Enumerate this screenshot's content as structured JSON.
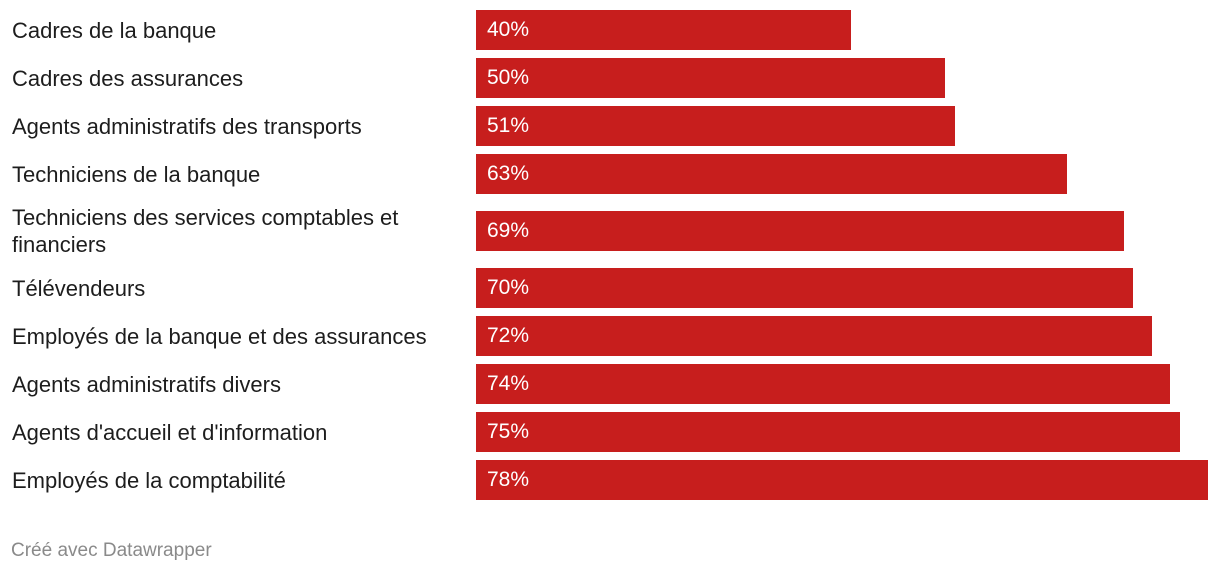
{
  "chart_data": {
    "type": "bar",
    "orientation": "horizontal",
    "categories": [
      "Cadres de la banque",
      "Cadres des assurances",
      "Agents administratifs des transports",
      "Techniciens de la banque",
      "Techniciens des services comptables et financiers",
      "Télévendeurs",
      "Employés de la banque et des assurances",
      "Agents administratifs divers",
      "Agents d'accueil et d'information",
      "Employés de la comptabilité"
    ],
    "values": [
      40,
      50,
      51,
      63,
      69,
      70,
      72,
      74,
      75,
      78
    ],
    "value_labels": [
      "40%",
      "50%",
      "51%",
      "63%",
      "69%",
      "70%",
      "72%",
      "74%",
      "75%",
      "78%"
    ],
    "title": "",
    "xlabel": "",
    "ylabel": "",
    "xlim": [
      0,
      78
    ],
    "grid": false,
    "bar_color": "#c71e1d"
  },
  "footer": {
    "credit": "Créé avec Datawrapper"
  }
}
